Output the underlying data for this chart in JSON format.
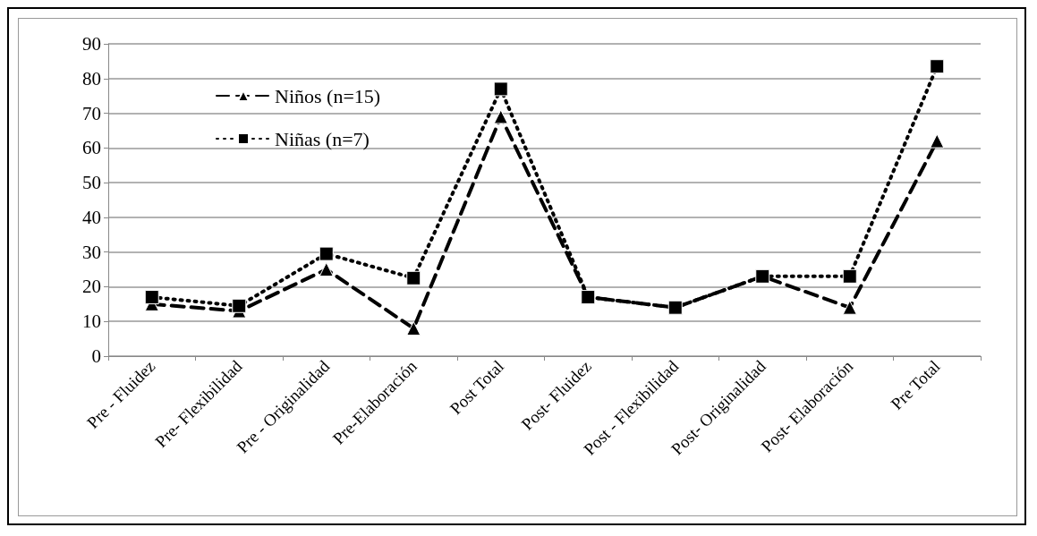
{
  "chart_data": {
    "type": "line",
    "categories": [
      "Pre - Fluidez",
      "Pre- Flexibilidad",
      "Pre - Originalidad",
      "Pre-Elaboración",
      "Post Total",
      "Post- Fluidez",
      "Post - Flexibilidad",
      "Post- Originalidad",
      "Post- Elaboración",
      "Pre Total"
    ],
    "series": [
      {
        "name": "Niños (n=15)",
        "color": "#000000",
        "line_style": "dashed",
        "marker": "triangle",
        "values": [
          15,
          13,
          25,
          8,
          69,
          17,
          14,
          23,
          14,
          62
        ]
      },
      {
        "name": "Niñas (n=7)",
        "color": "#000000",
        "line_style": "dotted",
        "marker": "square",
        "values": [
          17,
          14.5,
          29.5,
          22.5,
          77,
          17,
          14,
          23,
          23,
          83.5
        ]
      }
    ],
    "ylim": [
      0,
      90
    ],
    "yticks": [
      0,
      10,
      20,
      30,
      40,
      50,
      60,
      70,
      80,
      90
    ],
    "grid": "y",
    "legend": "top left"
  }
}
